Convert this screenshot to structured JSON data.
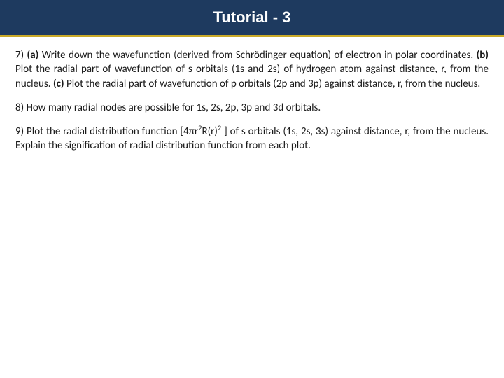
{
  "header": {
    "title": "Tutorial - 3",
    "background_color": "#1e3a5f",
    "underline_color": "#c9a928",
    "text_color": "#ffffff",
    "title_fontsize": 22
  },
  "content": {
    "background_color": "#ffffff",
    "text_color": "#1a1a1a",
    "body_fontsize": 15,
    "questions": [
      {
        "number": "7)",
        "parts": [
          {
            "label": "(a)",
            "text": "Write down the wavefunction (derived from Schrödinger equation) of electron in polar coordinates."
          },
          {
            "label": "(b)",
            "text": "Plot the radial part of wavefunction of s orbitals (1s and 2s) of hydrogen atom against distance, r, from the nucleus."
          },
          {
            "label": "(c)",
            "text": "Plot the radial part of wavefunction of p orbitals (2p and 3p) against distance, r, from the nucleus."
          }
        ]
      },
      {
        "number": "8)",
        "text": "How many radial nodes are possible for 1s, 2s, 2p, 3p and 3d orbitals."
      },
      {
        "number": "9)",
        "text_pre": "Plot the radial distribution function [4πr",
        "sup1": "2",
        "text_mid1": "R(r)",
        "sup2": "2",
        "text_post": " ] of s orbitals (1s, 2s, 3s) against distance, r, from the nucleus. Explain the signification of radial distribution function from each plot."
      }
    ]
  }
}
